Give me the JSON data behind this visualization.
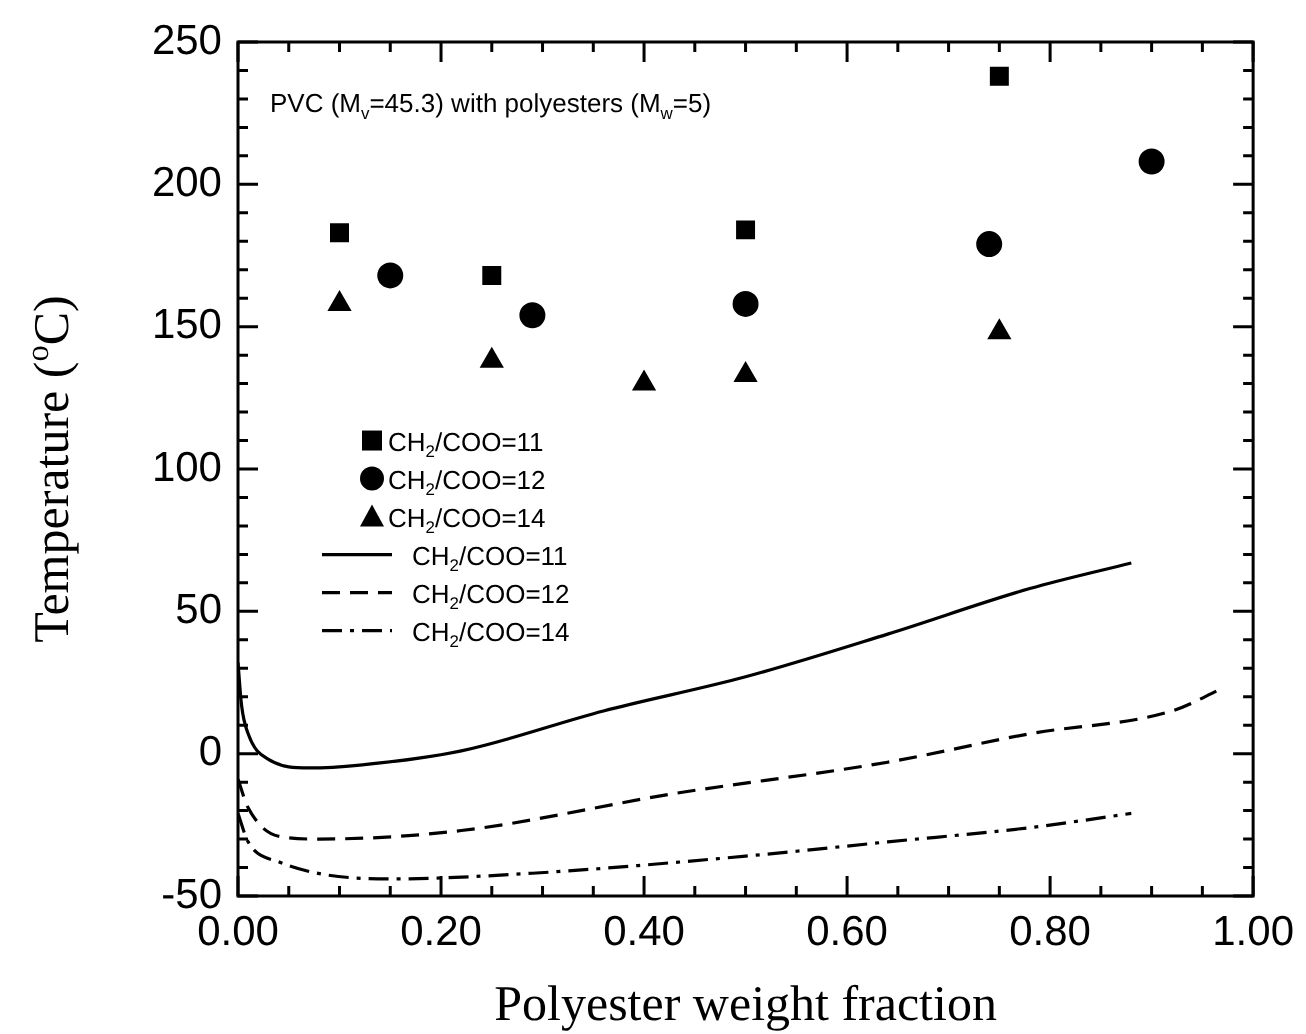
{
  "chart_data": {
    "type": "scatter",
    "xlabel": "Polyester weight fraction",
    "ylabel": "Temperature ($^{o}$C)",
    "annotations": [
      "PVC (M$_{v}$=45.3) with polyesters (M$_{w}$=5)"
    ],
    "legend": "left",
    "grid": false,
    "xlim": [
      0,
      1
    ],
    "ylim": [
      -50,
      250
    ],
    "xticks": [
      {
        "value": 0,
        "label": "0.00"
      },
      {
        "value": 0.05,
        "label": null
      },
      {
        "value": 0.1,
        "label": null
      },
      {
        "value": 0.15,
        "label": null
      },
      {
        "value": 0.2,
        "label": "0.20"
      },
      {
        "value": 0.25,
        "label": null
      },
      {
        "value": 0.3,
        "label": null
      },
      {
        "value": 0.35,
        "label": null
      },
      {
        "value": 0.4,
        "label": "0.40"
      },
      {
        "value": 0.45,
        "label": null
      },
      {
        "value": 0.5,
        "label": null
      },
      {
        "value": 0.55,
        "label": null
      },
      {
        "value": 0.6,
        "label": "0.60"
      },
      {
        "value": 0.65,
        "label": null
      },
      {
        "value": 0.7,
        "label": null
      },
      {
        "value": 0.75,
        "label": null
      },
      {
        "value": 0.8,
        "label": "0.80"
      },
      {
        "value": 0.85,
        "label": null
      },
      {
        "value": 0.9,
        "label": null
      },
      {
        "value": 0.95,
        "label": null
      },
      {
        "value": 1,
        "label": "1.00"
      }
    ],
    "yticks": [
      -50,
      {
        "value": -40,
        "label": null
      },
      {
        "value": -30,
        "label": null
      },
      {
        "value": -20,
        "label": null
      },
      {
        "value": -10,
        "label": null
      },
      0,
      {
        "value": 10,
        "label": null
      },
      {
        "value": 20,
        "label": null
      },
      {
        "value": 30,
        "label": null
      },
      {
        "value": 40,
        "label": null
      },
      50,
      {
        "value": 60,
        "label": null
      },
      {
        "value": 70,
        "label": null
      },
      {
        "value": 80,
        "label": null
      },
      {
        "value": 90,
        "label": null
      },
      100,
      {
        "value": 110,
        "label": null
      },
      {
        "value": 120,
        "label": null
      },
      {
        "value": 130,
        "label": null
      },
      {
        "value": 140,
        "label": null
      },
      150,
      {
        "value": 160,
        "label": null
      },
      {
        "value": 170,
        "label": null
      },
      {
        "value": 180,
        "label": null
      },
      {
        "value": 190,
        "label": null
      },
      200,
      {
        "value": 210,
        "label": null
      },
      {
        "value": 220,
        "label": null
      },
      {
        "value": 230,
        "label": null
      },
      {
        "value": 240,
        "label": null
      },
      250
    ],
    "series": [
      {
        "name": "CH$_{2}$/COO=11",
        "type": "scatter",
        "marker": "square",
        "color": "#000000",
        "x": [
          0.1,
          0.25,
          0.5,
          0.75
        ],
        "values": [
          183,
          168,
          184,
          238
        ]
      },
      {
        "name": "CH$_{2}$/COO=12",
        "type": "scatter",
        "marker": "circle",
        "color": "#000000",
        "x": [
          0.15,
          0.29,
          0.5,
          0.74,
          0.9
        ],
        "values": [
          168,
          154,
          158,
          179,
          208
        ]
      },
      {
        "name": "CH$_{2}$/COO=14",
        "type": "scatter",
        "marker": "triangle",
        "color": "#000000",
        "x": [
          0.1,
          0.25,
          0.4,
          0.5,
          0.75
        ],
        "values": [
          158,
          138,
          130,
          133,
          148
        ]
      },
      {
        "name": "CH$_{2}$/COO=11",
        "type": "line",
        "line_style": "solid",
        "color": "#000000",
        "x": [
          0,
          0.0035,
          0.01,
          0.03,
          0.07,
          0.12,
          0.22,
          0.36,
          0.5,
          0.64,
          0.78,
          0.88
        ],
        "values": [
          32,
          17,
          7,
          -2,
          -5,
          -4,
          1,
          15,
          27,
          42,
          58,
          67
        ]
      },
      {
        "name": "CH$_{2}$/COO=12",
        "type": "line",
        "line_style": "dashed",
        "color": "#000000",
        "x": [
          0,
          0.01,
          0.04,
          0.08,
          0.22,
          0.43,
          0.64,
          0.78,
          0.92,
          0.97
        ],
        "values": [
          -9,
          -19,
          -29,
          -30,
          -27,
          -14,
          -3,
          7,
          15,
          23
        ]
      },
      {
        "name": "CH$_{2}$/COO=14",
        "type": "line",
        "line_style": "dashdot",
        "color": "#000000",
        "x": [
          0,
          0.01,
          0.04,
          0.15,
          0.29,
          0.5,
          0.64,
          0.78,
          0.88
        ],
        "values": [
          -21,
          -31,
          -38,
          -44,
          -42,
          -36,
          -31,
          -26,
          -21
        ]
      }
    ]
  }
}
